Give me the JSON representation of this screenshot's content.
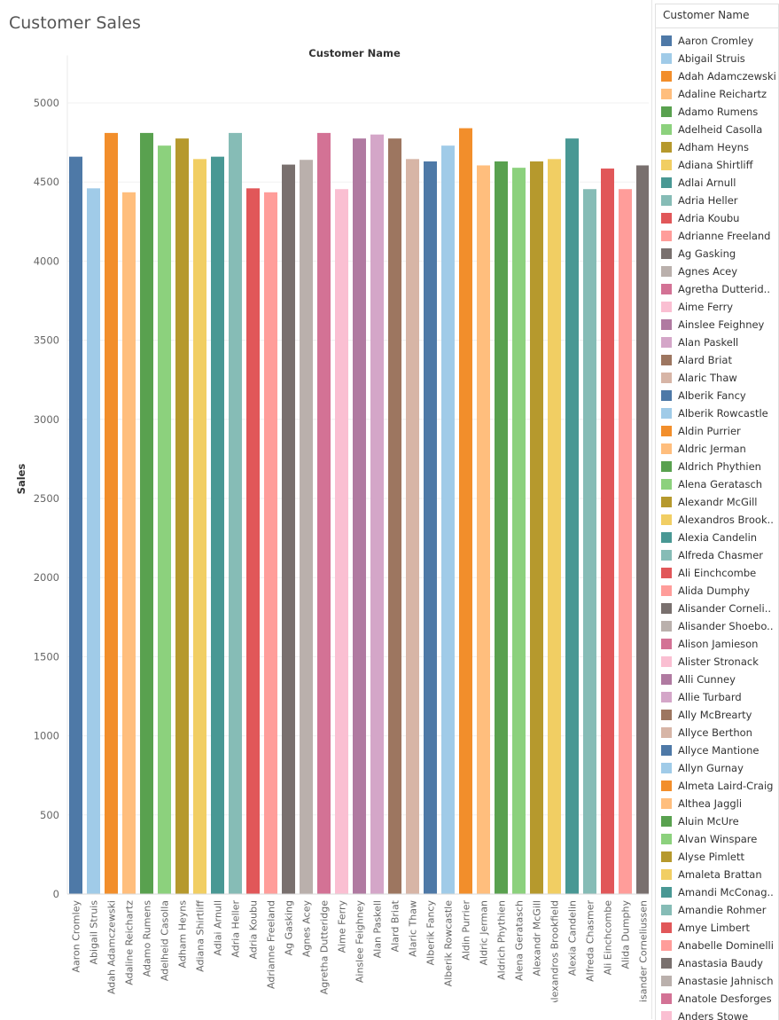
{
  "title": "Customer Sales",
  "legend_title": "Customer Name",
  "legend_items": [
    {
      "label": "Aaron Cromley",
      "color": "#4e79a7"
    },
    {
      "label": "Abigail Struis",
      "color": "#a0cbe8"
    },
    {
      "label": "Adah Adamczewski",
      "color": "#f28e2b"
    },
    {
      "label": "Adaline Reichartz",
      "color": "#ffbe7d"
    },
    {
      "label": "Adamo Rumens",
      "color": "#59a14f"
    },
    {
      "label": "Adelheid Casolla",
      "color": "#8cd17d"
    },
    {
      "label": "Adham Heyns",
      "color": "#b6992d"
    },
    {
      "label": "Adiana Shirtliff",
      "color": "#f1ce63"
    },
    {
      "label": "Adlai Arnull",
      "color": "#499894"
    },
    {
      "label": "Adria Heller",
      "color": "#86bcb6"
    },
    {
      "label": "Adria Koubu",
      "color": "#e15759"
    },
    {
      "label": "Adrianne Freeland",
      "color": "#ff9d9a"
    },
    {
      "label": "Ag Gasking",
      "color": "#79706e"
    },
    {
      "label": "Agnes Acey",
      "color": "#bab0ac"
    },
    {
      "label": "Agretha Dutterid..",
      "color": "#d37295"
    },
    {
      "label": "Aime Ferry",
      "color": "#fabfd2"
    },
    {
      "label": "Ainslee Feighney",
      "color": "#b07aa1"
    },
    {
      "label": "Alan Paskell",
      "color": "#d4a6c8"
    },
    {
      "label": "Alard Briat",
      "color": "#9d7660"
    },
    {
      "label": "Alaric Thaw",
      "color": "#d7b5a6"
    },
    {
      "label": "Alberik Fancy",
      "color": "#4e79a7"
    },
    {
      "label": "Alberik Rowcastle",
      "color": "#a0cbe8"
    },
    {
      "label": "Aldin Purrier",
      "color": "#f28e2b"
    },
    {
      "label": "Aldric Jerman",
      "color": "#ffbe7d"
    },
    {
      "label": "Aldrich Phythien",
      "color": "#59a14f"
    },
    {
      "label": "Alena Geratasch",
      "color": "#8cd17d"
    },
    {
      "label": "Alexandr McGill",
      "color": "#b6992d"
    },
    {
      "label": "Alexandros Brook..",
      "color": "#f1ce63"
    },
    {
      "label": "Alexia Candelin",
      "color": "#499894"
    },
    {
      "label": "Alfreda Chasmer",
      "color": "#86bcb6"
    },
    {
      "label": "Ali Einchcombe",
      "color": "#e15759"
    },
    {
      "label": "Alida Dumphy",
      "color": "#ff9d9a"
    },
    {
      "label": "Alisander Corneli..",
      "color": "#79706e"
    },
    {
      "label": "Alisander Shoebo..",
      "color": "#bab0ac"
    },
    {
      "label": "Alison Jamieson",
      "color": "#d37295"
    },
    {
      "label": "Alister Stronack",
      "color": "#fabfd2"
    },
    {
      "label": "Alli Cunney",
      "color": "#b07aa1"
    },
    {
      "label": "Allie Turbard",
      "color": "#d4a6c8"
    },
    {
      "label": "Ally McBrearty",
      "color": "#9d7660"
    },
    {
      "label": "Allyce Berthon",
      "color": "#d7b5a6"
    },
    {
      "label": "Allyce Mantione",
      "color": "#4e79a7"
    },
    {
      "label": "Allyn Gurnay",
      "color": "#a0cbe8"
    },
    {
      "label": "Almeta Laird-Craig",
      "color": "#f28e2b"
    },
    {
      "label": "Althea Jaggli",
      "color": "#ffbe7d"
    },
    {
      "label": "Aluin McUre",
      "color": "#59a14f"
    },
    {
      "label": "Alvan Winspare",
      "color": "#8cd17d"
    },
    {
      "label": "Alyse Pimlett",
      "color": "#b6992d"
    },
    {
      "label": "Amaleta Brattan",
      "color": "#f1ce63"
    },
    {
      "label": "Amandi McConag..",
      "color": "#499894"
    },
    {
      "label": "Amandie Rohmer",
      "color": "#86bcb6"
    },
    {
      "label": "Amye Limbert",
      "color": "#e15759"
    },
    {
      "label": "Anabelle Dominelli",
      "color": "#ff9d9a"
    },
    {
      "label": "Anastasia Baudy",
      "color": "#79706e"
    },
    {
      "label": "Anastasie Jahnisch",
      "color": "#bab0ac"
    },
    {
      "label": "Anatole Desforges",
      "color": "#d37295"
    },
    {
      "label": "Anders Stowe",
      "color": "#fabfd2"
    }
  ],
  "chart_data": {
    "type": "bar",
    "title": "Customer Sales",
    "column_header": "Customer Name",
    "ylabel": "Sales",
    "ylim": [
      0,
      5300
    ],
    "yticks": [
      0,
      500,
      1000,
      1500,
      2000,
      2500,
      3000,
      3500,
      4000,
      4500,
      5000
    ],
    "grid": true,
    "categories": [
      "Aaron Cromley",
      "Abigail Struis",
      "Adah Adamczewski",
      "Adaline Reichartz",
      "Adamo Rumens",
      "Adelheid Casolla",
      "Adham Heyns",
      "Adiana Shirtliff",
      "Adlai Arnull",
      "Adria Heller",
      "Adria Koubu",
      "Adrianne Freeland",
      "Ag Gasking",
      "Agnes Acey",
      "Agretha Dutteridge",
      "Aime Ferry",
      "Ainslee Feighney",
      "Alan Paskell",
      "Alard Briat",
      "Alaric Thaw",
      "Alberik Fancy",
      "Alberik Rowcastle",
      "Aldin Purrier",
      "Aldric Jerman",
      "Aldrich Phythien",
      "Alena Geratasch",
      "Alexandr McGill",
      "Alexandros Brookfield",
      "Alexia Candelin",
      "Alfreda Chasmer",
      "Ali Einchcombe",
      "Alida Dumphy",
      "Alisander Corneliussen"
    ],
    "values": [
      4660,
      4460,
      4810,
      4435,
      4810,
      4730,
      4775,
      4645,
      4660,
      4810,
      4460,
      4435,
      4610,
      4640,
      4810,
      4455,
      4775,
      4800,
      4775,
      4645,
      4630,
      4730,
      4840,
      4605,
      4630,
      4590,
      4630,
      4645,
      4775,
      4455,
      4585,
      4455,
      4605
    ],
    "colors": [
      "#4e79a7",
      "#a0cbe8",
      "#f28e2b",
      "#ffbe7d",
      "#59a14f",
      "#8cd17d",
      "#b6992d",
      "#f1ce63",
      "#499894",
      "#86bcb6",
      "#e15759",
      "#ff9d9a",
      "#79706e",
      "#bab0ac",
      "#d37295",
      "#fabfd2",
      "#b07aa1",
      "#d4a6c8",
      "#9d7660",
      "#d7b5a6",
      "#4e79a7",
      "#a0cbe8",
      "#f28e2b",
      "#ffbe7d",
      "#59a14f",
      "#8cd17d",
      "#b6992d",
      "#f1ce63",
      "#499894",
      "#86bcb6",
      "#e15759",
      "#ff9d9a",
      "#79706e"
    ]
  }
}
